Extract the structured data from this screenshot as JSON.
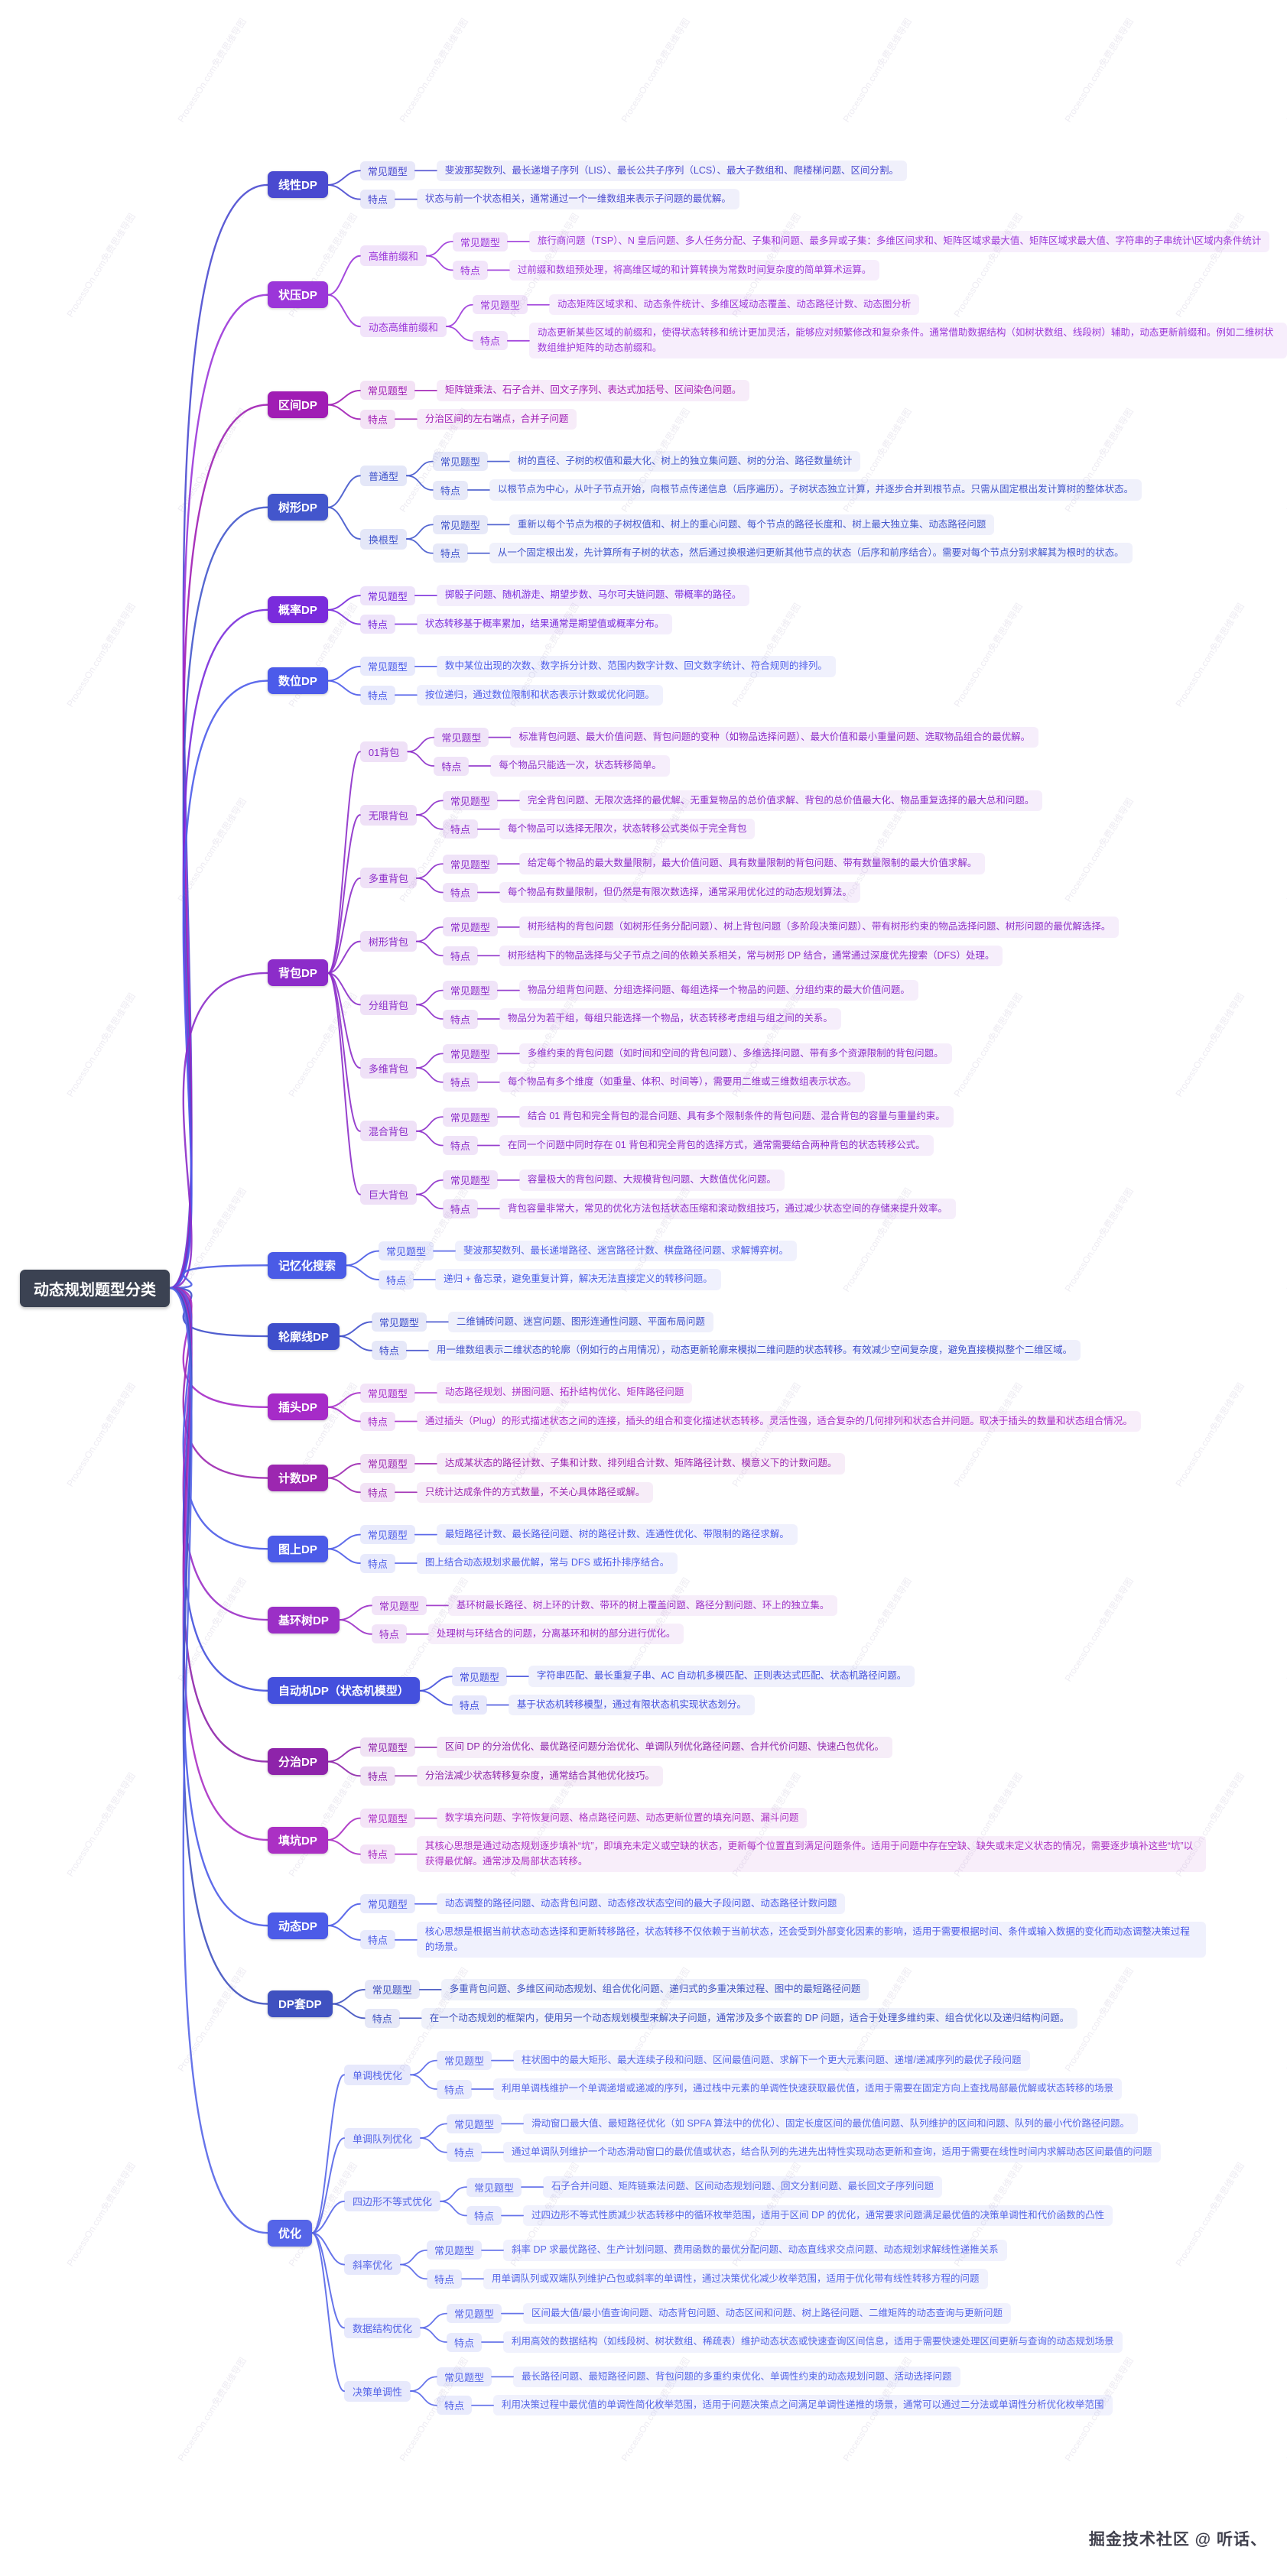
{
  "root": {
    "label": "动态规划题型分类"
  },
  "labels": {
    "common_label": "常见题型",
    "feature_label": "特点"
  },
  "watermark": {
    "diagonal": "ProcessOn.com免费思维导图",
    "credit": "掘金技术社区 @ 听话、"
  },
  "branches": [
    {
      "label": "线性DP",
      "color": "#4a4ad0",
      "common": "斐波那契数列、最长递增子序列（LIS）、最长公共子序列（LCS）、最大子数组和、爬楼梯问题、区间分割。",
      "feature": "状态与前一个状态相关，通常通过一个一维数组来表示子问题的最优解。"
    },
    {
      "label": "状压DP",
      "color": "#9b36d9",
      "children": [
        {
          "label": "高维前缀和",
          "common": "旅行商问题（TSP）、N 皇后问题、多人任务分配、子集和问题、最多异或子集：多维区间求和、矩阵区域求最大值、矩阵区域求最大值、字符串的子串统计\\区域内条件统计",
          "feature": "过前缀和数组预处理，将高维区域的和计算转换为常数时间复杂度的简单算术运算。"
        },
        {
          "label": "动态高维前缀和",
          "common": "动态矩阵区域求和、动态条件统计、多维区域动态覆盖、动态路径计数、动态图分析",
          "feature": "动态更新某些区域的前缀和，使得状态转移和统计更加灵活，能够应对频繁修改和复杂条件。通常借助数据结构（如树状数组、线段树）辅助，动态更新前缀和。例如二维树状数组维护矩阵的动态前缀和。"
        }
      ]
    },
    {
      "label": "区间DP",
      "color": "#a01db4",
      "common": "矩阵链乘法、石子合并、回文子序列、表达式加括号、区间染色问题。",
      "feature": "分治区间的左右端点，合并子问题"
    },
    {
      "label": "树形DP",
      "color": "#4356cc",
      "children": [
        {
          "label": "普通型",
          "common": "树的直径、子树的权值和最大化、树上的独立集问题、树的分治、路径数量统计",
          "feature": "以根节点为中心，从叶子节点开始，向根节点传递信息（后序遍历）。子树状态独立计算，并逐步合并到根节点。只需从固定根出发计算树的整体状态。"
        },
        {
          "label": "换根型",
          "common": "重新以每个节点为根的子树权值和、树上的重心问题、每个节点的路径长度和、树上最大独立集、动态路径问题",
          "feature": "从一个固定根出发，先计算所有子树的状态，然后通过换根递归更新其他节点的状态（后序和前序结合）。需要对每个节点分别求解其为根时的状态。"
        }
      ]
    },
    {
      "label": "概率DP",
      "color": "#7a2bdc",
      "common": "掷骰子问题、随机游走、期望步数、马尔可夫链问题、带概率的路径。",
      "feature": "状态转移基于概率累加，结果通常是期望值或概率分布。"
    },
    {
      "label": "数位DP",
      "color": "#4c5bea",
      "common": "数中某位出现的次数、数字拆分计数、范围内数字计数、回文数字统计、符合规则的排列。",
      "feature": "按位递归，通过数位限制和状态表示计数或优化问题。"
    },
    {
      "label": "背包DP",
      "color": "#8c2cc9",
      "children": [
        {
          "label": "01背包",
          "common": "标准背包问题、最大价值问题、背包问题的变种（如物品选择问题）、最大价值和最小重量问题、选取物品组合的最优解。",
          "feature": "每个物品只能选一次，状态转移简单。"
        },
        {
          "label": "无限背包",
          "common": "完全背包问题、无限次选择的最优解、无重复物品的总价值求解、背包的总价值最大化、物品重复选择的最大总和问题。",
          "feature": "每个物品可以选择无限次，状态转移公式类似于完全背包"
        },
        {
          "label": "多重背包",
          "common": "给定每个物品的最大数量限制，最大价值问题、具有数量限制的背包问题、带有数量限制的最大价值求解。",
          "feature": "每个物品有数量限制，但仍然是有限次数选择，通常采用优化过的动态规划算法。"
        },
        {
          "label": "树形背包",
          "common": "树形结构的背包问题（如树形任务分配问题）、树上背包问题（多阶段决策问题）、带有树形约束的物品选择问题、树形问题的最优解选择。",
          "feature": "树形结构下的物品选择与父子节点之间的依赖关系相关，常与树形 DP 结合，通常通过深度优先搜索（DFS）处理。"
        },
        {
          "label": "分组背包",
          "common": "物品分组背包问题、分组选择问题、每组选择一个物品的问题、分组约束的最大价值问题。",
          "feature": "物品分为若干组，每组只能选择一个物品，状态转移考虑组与组之间的关系。"
        },
        {
          "label": "多维背包",
          "common": "多维约束的背包问题（如时间和空间的背包问题）、多维选择问题、带有多个资源限制的背包问题。",
          "feature": "每个物品有多个维度（如重量、体积、时间等），需要用二维或三维数组表示状态。"
        },
        {
          "label": "混合背包",
          "common": "结合 01 背包和完全背包的混合问题、具有多个限制条件的背包问题、混合背包的容量与重量约束。",
          "feature": "在同一个问题中同时存在 01 背包和完全背包的选择方式，通常需要结合两种背包的状态转移公式。"
        },
        {
          "label": "巨大背包",
          "common": "容量极大的背包问题、大规模背包问题、大数值优化问题。",
          "feature": "背包容量非常大，常见的优化方法包括状态压缩和滚动数组技巧，通过减少状态空间的存储来提升效率。"
        }
      ]
    },
    {
      "label": "记忆化搜索",
      "color": "#4a5be6",
      "common": "斐波那契数列、最长递增路径、迷宫路径计数、棋盘路径问题、求解博弈树。",
      "feature": "递归 + 备忘录，避免重复计算，解决无法直接定义的转移问题。"
    },
    {
      "label": "轮廓线DP",
      "color": "#3e4ecb",
      "common": "二维铺砖问题、迷宫问题、图形连通性问题、平面布局问题",
      "feature": "用一维数组表示二维状态的轮廓（例如行的占用情况），动态更新轮廓来模拟二维问题的状态转移。有效减少空间复杂度，避免直接模拟整个二维区域。"
    },
    {
      "label": "插头DP",
      "color": "#a62bc8",
      "common": "动态路径规划、拼图问题、拓扑结构优化、矩阵路径问题",
      "feature": "通过插头（Plug）的形式描述状态之间的连接，插头的组合和变化描述状态转移。灵活性强，适合复杂的几何排列和状态合并问题。取决于插头的数量和状态组合情况。"
    },
    {
      "label": "计数DP",
      "color": "#9c27b0",
      "common": "达成某状态的路径计数、子集和计数、排列组合计数、矩阵路径计数、模意义下的计数问题。",
      "feature": "只统计达成条件的方式数量，不关心具体路径或解。"
    },
    {
      "label": "图上DP",
      "color": "#4c5be8",
      "common": "最短路径计数、最长路径问题、树的路径计数、连通性优化、带限制的路径求解。",
      "feature": "图上结合动态规划求最优解，常与 DFS 或拓扑排序结合。"
    },
    {
      "label": "基环树DP",
      "color": "#9b2fc6",
      "common": "基环树最长路径、树上环的计数、带环的树上覆盖问题、路径分割问题、环上的独立集。",
      "feature": "处理树与环结合的问题，分离基环和树的部分进行优化。"
    },
    {
      "label": "自动机DP（状态机模型）",
      "color": "#4450dd",
      "common": "字符串匹配、最长重复子串、AC 自动机多模匹配、正则表达式匹配、状态机路径问题。",
      "feature": "基于状态机转移模型，通过有限状态机实现状态划分。"
    },
    {
      "label": "分治DP",
      "color": "#8e24aa",
      "common": "区间 DP 的分治优化、最优路径问题分治优化、单调队列优化路径问题、合并代价问题、快速凸包优化。",
      "feature": "分治法减少状态转移复杂度，通常结合其他优化技巧。"
    },
    {
      "label": "填坑DP",
      "color": "#ab30c4",
      "common": "数字填充问题、字符恢复问题、格点路径问题、动态更新位置的填充问题、漏斗问题",
      "feature": "其核心思想是通过动态规划逐步填补“坑”，即填充未定义或空缺的状态，更新每个位置直到满足问题条件。适用于问题中存在空缺、缺失或未定义状态的情况，需要逐步填补这些“坑”以获得最优解。通常涉及局部状态转移。"
    },
    {
      "label": "动态DP",
      "color": "#4c5be8",
      "common": "动态调整的路径问题、动态背包问题、动态修改状态空间的最大子段问题、动态路径计数问题",
      "feature": "核心思想是根据当前状态动态选择和更新转移路径，状态转移不仅依赖于当前状态，还会受到外部变化因素的影响，适用于需要根据时间、条件或输入数据的变化而动态调整决策过程的场景。"
    },
    {
      "label": "DP套DP",
      "color": "#3f51c0",
      "common": "多重背包问题、多维区间动态规划、组合优化问题、递归式的多重决策过程、图中的最短路径问题",
      "feature": "在一个动态规划的框架内，使用另一个动态规划模型来解决子问题，通常涉及多个嵌套的 DP 问题，适合于处理多维约束、组合优化以及递归结构问题。"
    },
    {
      "label": "优化",
      "color": "#5565e8",
      "children": [
        {
          "label": "单调栈优化",
          "common": "柱状图中的最大矩形、最大连续子段和问题、区间最值问题、求解下一个更大元素问题、递增/递减序列的最优子段问题",
          "feature": "利用单调栈维护一个单调递增或递减的序列，通过栈中元素的单调性快速获取最优值，适用于需要在固定方向上查找局部最优解或状态转移的场景"
        },
        {
          "label": "单调队列优化",
          "common": "滑动窗口最大值、最短路径优化（如 SPFA 算法中的优化）、固定长度区间的最优值问题、队列维护的区间和问题、队列的最小代价路径问题。",
          "feature": "通过单调队列维护一个动态滑动窗口的最优值或状态，结合队列的先进先出特性实现动态更新和查询，适用于需要在线性时间内求解动态区间最值的问题"
        },
        {
          "label": "四边形不等式优化",
          "common": "石子合并问题、矩阵链乘法问题、区间动态规划问题、回文分割问题、最长回文子序列问题",
          "feature": "过四边形不等式性质减少状态转移中的循环枚举范围，适用于区间 DP 的优化，通常要求问题满足最优值的决策单调性和代价函数的凸性"
        },
        {
          "label": "斜率优化",
          "common": "斜率 DP 求最优路径、生产计划问题、费用函数的最优分配问题、动态直线求交点问题、动态规划求解线性递推关系",
          "feature": "用单调队列或双端队列维护凸包或斜率的单调性，通过决策优化减少枚举范围，适用于优化带有线性转移方程的问题"
        },
        {
          "label": "数据结构优化",
          "common": "区间最大值/最小值查询问题、动态背包问题、动态区间和问题、树上路径问题、二维矩阵的动态查询与更新问题",
          "feature": "利用高效的数据结构（如线段树、树状数组、稀疏表）维护动态状态或快速查询区间信息，适用于需要快速处理区间更新与查询的动态规划场景"
        },
        {
          "label": "决策单调性",
          "common": "最长路径问题、最短路径问题、背包问题的多重约束优化、单调性约束的动态规划问题、活动选择问题",
          "feature": "利用决策过程中最优值的单调性简化枚举范围，适用于问题决策点之间满足单调性递推的场景，通常可以通过二分法或单调性分析优化枚举范围"
        }
      ]
    }
  ]
}
